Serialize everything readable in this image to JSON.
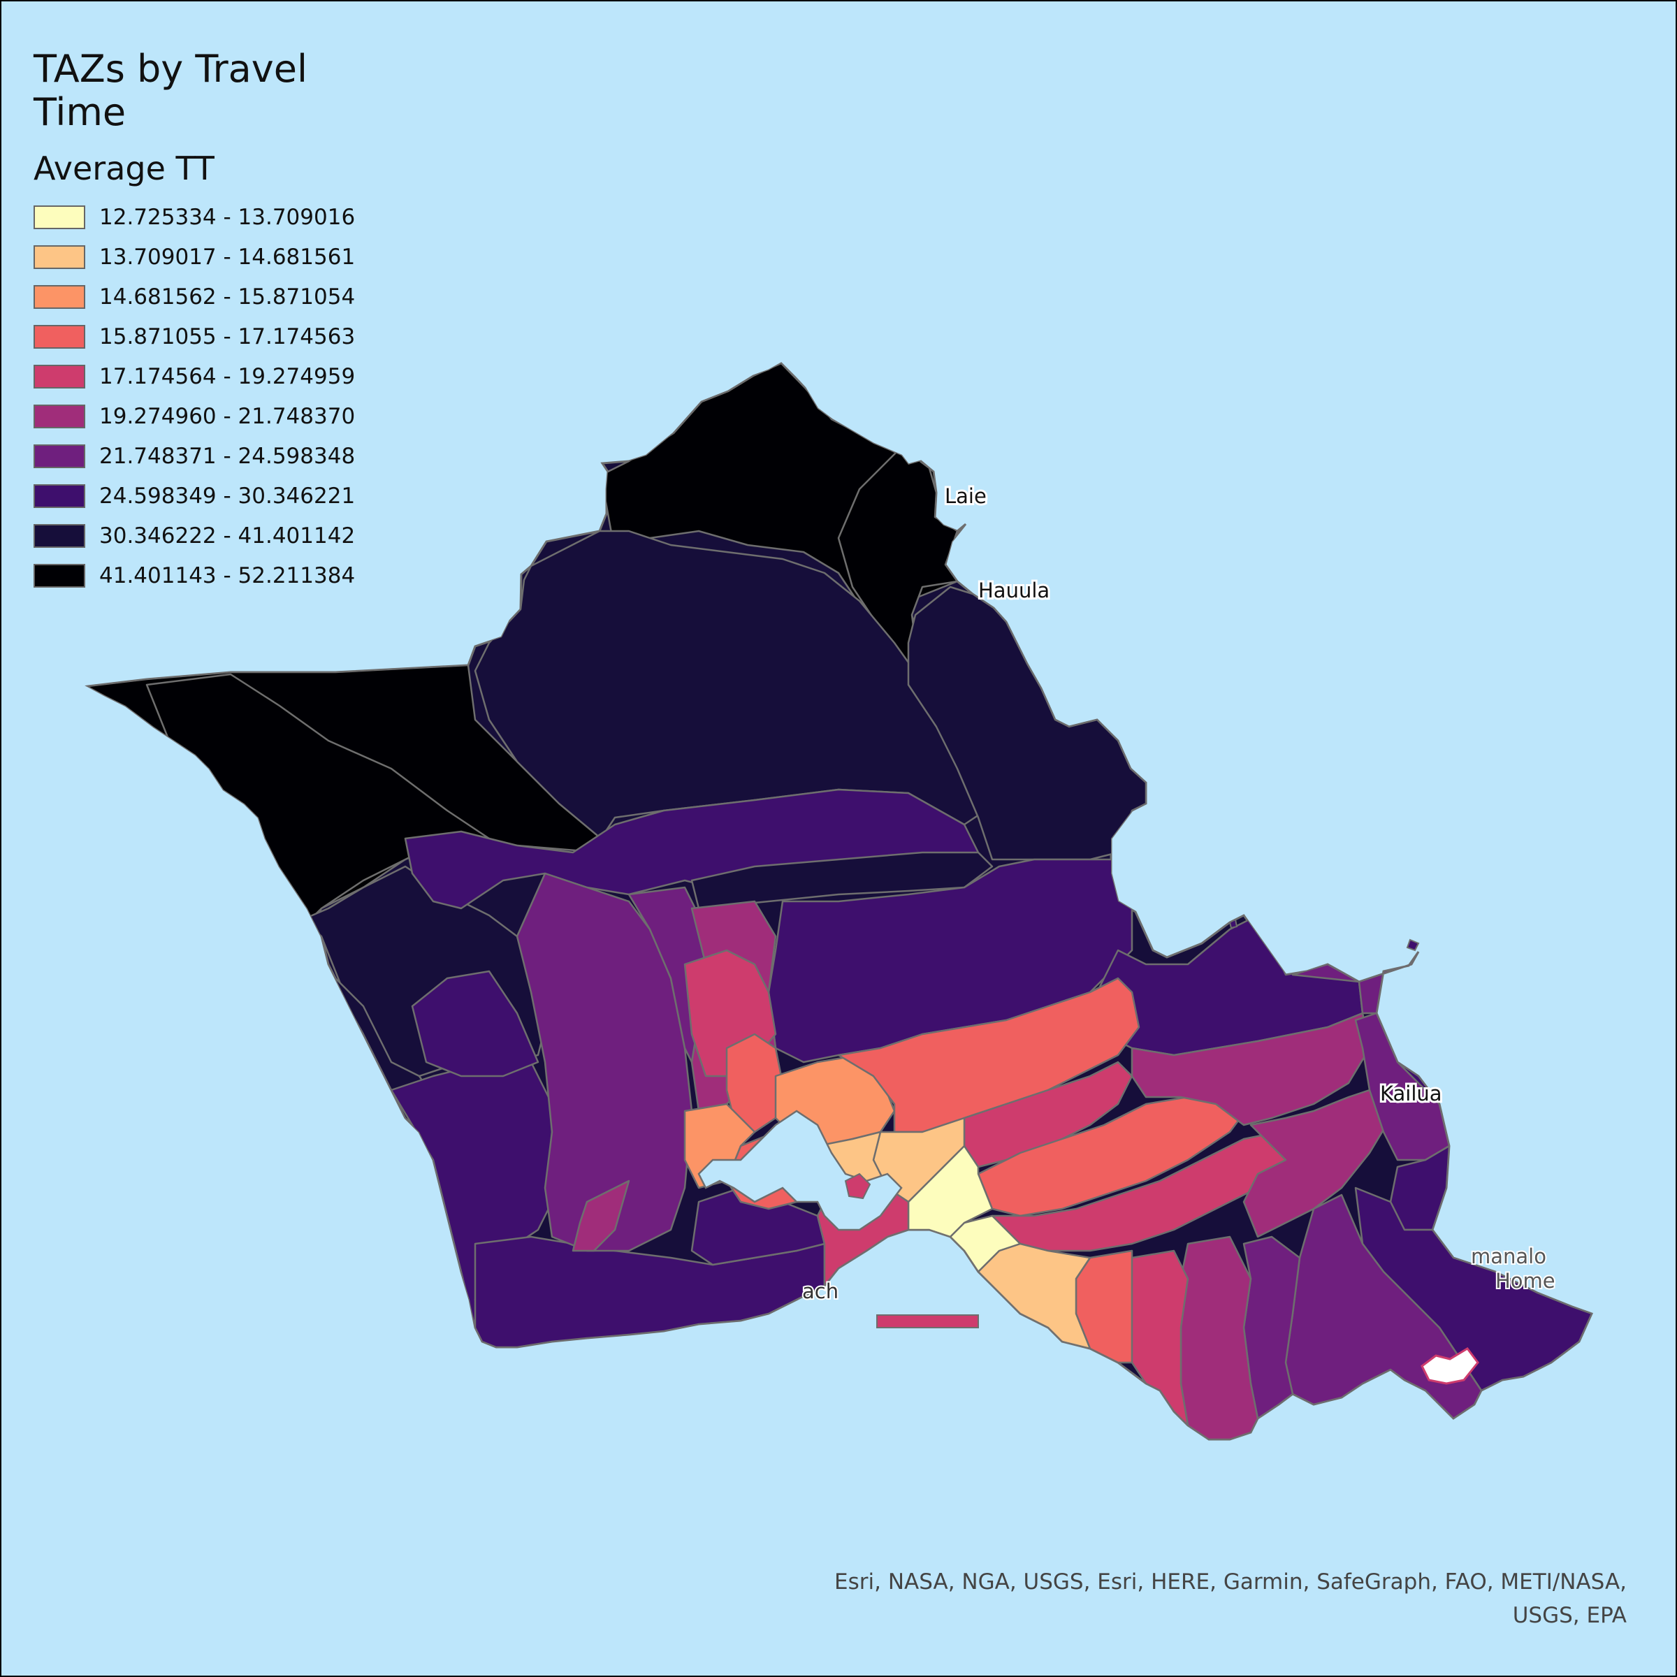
{
  "map": {
    "title": "TAZs by Travel Time",
    "legend": {
      "field": "Average TT",
      "classes": [
        {
          "label": "12.725334 - 13.709016",
          "color": "#fdfdbd"
        },
        {
          "label": "13.709017 - 14.681561",
          "color": "#fdc586"
        },
        {
          "label": "14.681562 - 15.871054",
          "color": "#fc9466"
        },
        {
          "label": "15.871055 - 17.174563",
          "color": "#f0605f"
        },
        {
          "label": "17.174564 - 19.274959",
          "color": "#ce3c6d"
        },
        {
          "label": "19.274960 - 21.748370",
          "color": "#a02d7a"
        },
        {
          "label": "21.748371 - 24.598348",
          "color": "#6f1f7e"
        },
        {
          "label": "24.598349 - 30.346221",
          "color": "#3e0f6d"
        },
        {
          "label": "30.346222 - 41.401142",
          "color": "#160e3a"
        },
        {
          "label": "41.401143 - 52.211384",
          "color": "#000004"
        }
      ]
    },
    "places": {
      "laie": "Laie",
      "hauula": "Hauula",
      "kailua": "Kailua",
      "waimanalo": "manalo",
      "waimanalo_home": "Home",
      "beach": "ach"
    },
    "attribution": "Esri, NASA, NGA, USGS, Esri, HERE, Garmin, SafeGraph, FAO, METI/NASA, USGS, EPA",
    "water_color": "#bde6fb",
    "boundary_color": "#6e6e6e"
  }
}
